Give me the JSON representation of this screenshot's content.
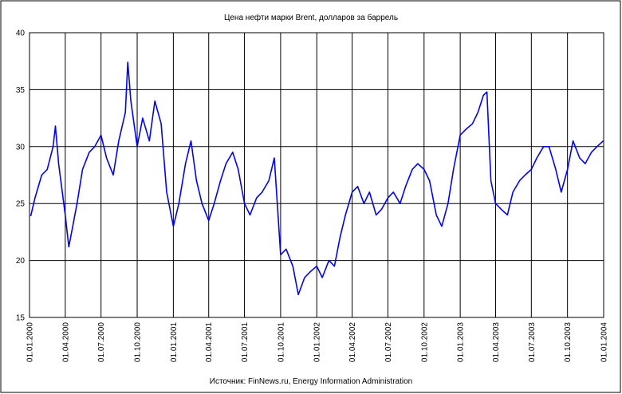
{
  "chart_data": {
    "type": "line",
    "title": "Цена нефти марки Brent, долларов за баррель",
    "source": "Источник: FinNews.ru, Energy Information Administration",
    "x": [
      "2000-01-04",
      "2000-01-15",
      "2000-02-01",
      "2000-02-15",
      "2000-03-01",
      "2000-03-07",
      "2000-03-15",
      "2000-04-01",
      "2000-04-10",
      "2000-04-20",
      "2000-05-01",
      "2000-05-15",
      "2000-06-01",
      "2000-06-15",
      "2000-07-01",
      "2000-07-15",
      "2000-08-01",
      "2000-08-15",
      "2000-09-01",
      "2000-09-07",
      "2000-09-15",
      "2000-10-01",
      "2000-10-15",
      "2000-11-01",
      "2000-11-15",
      "2000-12-01",
      "2000-12-15",
      "2001-01-01",
      "2001-01-15",
      "2001-02-01",
      "2001-02-15",
      "2001-03-01",
      "2001-03-15",
      "2001-04-01",
      "2001-04-15",
      "2001-05-01",
      "2001-05-15",
      "2001-06-01",
      "2001-06-15",
      "2001-07-01",
      "2001-07-15",
      "2001-08-01",
      "2001-08-15",
      "2001-09-01",
      "2001-09-15",
      "2001-10-01",
      "2001-10-15",
      "2001-11-01",
      "2001-11-15",
      "2001-12-01",
      "2001-12-15",
      "2002-01-01",
      "2002-01-15",
      "2002-02-01",
      "2002-02-15",
      "2002-03-01",
      "2002-03-15",
      "2002-04-01",
      "2002-04-15",
      "2002-05-01",
      "2002-05-15",
      "2002-06-01",
      "2002-06-15",
      "2002-07-01",
      "2002-07-15",
      "2002-08-01",
      "2002-08-15",
      "2002-09-01",
      "2002-09-15",
      "2002-10-01",
      "2002-10-15",
      "2002-11-01",
      "2002-11-15",
      "2002-12-01",
      "2002-12-15",
      "2003-01-01",
      "2003-01-15",
      "2003-02-01",
      "2003-02-15",
      "2003-03-01",
      "2003-03-10",
      "2003-03-20",
      "2003-04-01",
      "2003-04-15",
      "2003-05-01",
      "2003-05-15",
      "2003-06-01",
      "2003-06-15",
      "2003-07-01",
      "2003-07-15",
      "2003-08-01",
      "2003-08-15",
      "2003-09-01",
      "2003-09-15",
      "2003-10-01",
      "2003-10-15",
      "2003-11-01",
      "2003-11-15",
      "2003-12-01",
      "2003-12-15",
      "2003-12-31"
    ],
    "series": [
      {
        "name": "Brent",
        "color": "#0000ff",
        "values": [
          23.9,
          25.5,
          27.5,
          28,
          30,
          31.8,
          28.5,
          24,
          21.2,
          23,
          25,
          28,
          29.5,
          30,
          31,
          29,
          27.5,
          30.5,
          33,
          37.4,
          34,
          30,
          32.5,
          30.5,
          34,
          32,
          26,
          23,
          25,
          28.5,
          30.5,
          27,
          25,
          23.5,
          25,
          27,
          28.5,
          29.5,
          28,
          25,
          24,
          25.5,
          26,
          27,
          29,
          20.5,
          21,
          19.5,
          17,
          18.5,
          19,
          19.5,
          18.5,
          20,
          19.5,
          22,
          24,
          26,
          26.5,
          25,
          26,
          24,
          24.5,
          25.5,
          26,
          25,
          26.5,
          28,
          28.5,
          28,
          27,
          24,
          23,
          25,
          28,
          31,
          31.5,
          32,
          33,
          34.5,
          34.8,
          27,
          25,
          24.5,
          24,
          26,
          27,
          27.5,
          28,
          29,
          30,
          30,
          28,
          26,
          28,
          30.5,
          29,
          28.5,
          29.5,
          30,
          30.5
        ]
      }
    ],
    "xlim": [
      "2000-01-01",
      "2004-01-01"
    ],
    "xticks": [
      {
        "value": "2000-01-01",
        "label": "01.01.2000"
      },
      {
        "value": "2000-04-01",
        "label": "01.04.2000"
      },
      {
        "value": "2000-07-01",
        "label": "01.07.2000"
      },
      {
        "value": "2000-10-01",
        "label": "01.10.2000"
      },
      {
        "value": "2001-01-01",
        "label": "01.01.2001"
      },
      {
        "value": "2001-04-01",
        "label": "01.04.2001"
      },
      {
        "value": "2001-07-01",
        "label": "01.07.2001"
      },
      {
        "value": "2001-10-01",
        "label": "01.10.2001"
      },
      {
        "value": "2002-01-01",
        "label": "01.01.2002"
      },
      {
        "value": "2002-04-01",
        "label": "01.04.2002"
      },
      {
        "value": "2002-07-01",
        "label": "01.07.2002"
      },
      {
        "value": "2002-10-01",
        "label": "01.10.2002"
      },
      {
        "value": "2003-01-01",
        "label": "01.01.2003"
      },
      {
        "value": "2003-04-01",
        "label": "01.04.2003"
      },
      {
        "value": "2003-07-01",
        "label": "01.07.2003"
      },
      {
        "value": "2003-10-01",
        "label": "01.10.2003"
      },
      {
        "value": "2004-01-01",
        "label": "01.01.2004"
      }
    ],
    "ylim": [
      15,
      40
    ],
    "yticks": [
      15,
      20,
      25,
      30,
      35,
      40
    ],
    "grid": true
  }
}
